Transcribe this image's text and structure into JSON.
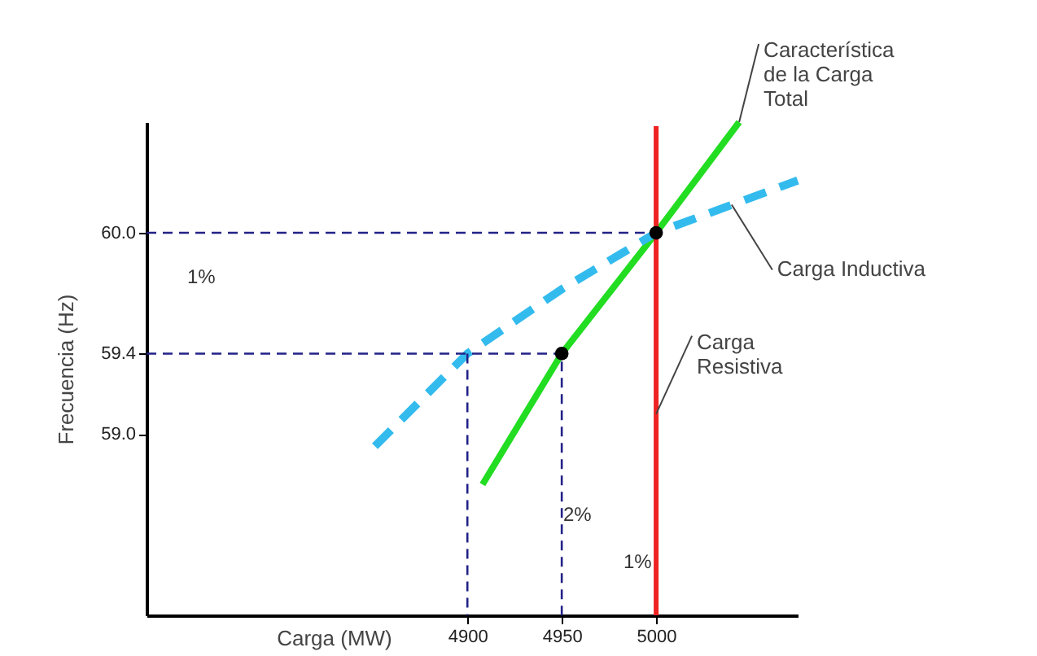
{
  "chart_data": {
    "type": "line",
    "xlabel": "Carga (MW)",
    "ylabel": "Frecuencia (Hz)",
    "xlim": [
      4730,
      5075
    ],
    "ylim": [
      58.1,
      60.55
    ],
    "xticks": [
      4900,
      4950,
      5000
    ],
    "yticks": [
      {
        "value": 59.0,
        "label": "59.0"
      },
      59.4,
      {
        "value": 60.0,
        "label": "60.0"
      }
    ],
    "grid": false,
    "series": [
      {
        "color": "#22dd22",
        "x": [
          4908,
          4950,
          5000,
          5044
        ],
        "values": [
          58.75,
          59.4,
          60.0,
          60.55
        ]
      },
      {
        "color": "#33bbee",
        "line_style": "dashed",
        "x": [
          4851,
          4900,
          4950,
          5000,
          5075
        ],
        "values": [
          58.94,
          59.4,
          59.72,
          60.0,
          60.26
        ]
      },
      {
        "color": "#ee2222",
        "x": [
          5000,
          5000
        ],
        "values": [
          58.1,
          60.53
        ]
      },
      {
        "color": "#222288",
        "line_style": "dashed",
        "x": [
          4730,
          5000
        ],
        "values": [
          60.0,
          60.0
        ]
      },
      {
        "color": "#222288",
        "line_style": "dashed",
        "x": [
          4730,
          4950,
          4950
        ],
        "values": [
          59.4,
          59.4,
          58.1
        ]
      },
      {
        "color": "#222288",
        "line_style": "dashed",
        "x": [
          4900,
          4900
        ],
        "values": [
          59.4,
          58.1
        ]
      },
      {
        "type": "scatter",
        "color": "#000000",
        "marker": "circle",
        "x": [
          4950,
          5000
        ],
        "values": [
          59.4,
          60.0
        ]
      }
    ],
    "annotations": [
      {
        "text": "Característica\nde la Carga\nTotal",
        "x": 5044,
        "y": 60.55
      },
      {
        "text": "Carga Inductiva",
        "x": 5040,
        "y": 60.14
      },
      {
        "text": "Carga\nResistiva",
        "x": 5000,
        "y": 59.1
      },
      "1%",
      "2%",
      "1%"
    ]
  }
}
